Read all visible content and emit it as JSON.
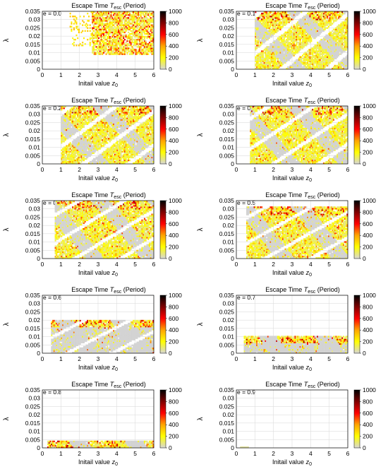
{
  "chart_data": {
    "type": "heatmap",
    "panel_count": 10,
    "title_prefix": "Escape Time ",
    "title_symbol": "T",
    "title_subscript": "esc",
    "title_suffix": " (Period)",
    "xlabel_prefix": "Initail value ",
    "xlabel_symbol": "z",
    "xlabel_subscript": "0",
    "ylabel": "λ",
    "xlim": [
      0,
      6
    ],
    "ylim": [
      0,
      0.035
    ],
    "xticks": [
      "0",
      "1",
      "2",
      "3",
      "4",
      "5",
      "6"
    ],
    "yticks": [
      "0",
      "0.005",
      "0.01",
      "0.015",
      "0.02",
      "0.025",
      "0.03",
      "0.035"
    ],
    "colorbar": {
      "range": [
        0,
        1000
      ],
      "ticks": [
        "0",
        "200",
        "400",
        "600",
        "800",
        "1000"
      ],
      "colors": [
        "#d7d7d7",
        "#ffff00",
        "#ffa500",
        "#ff0000",
        "#800000",
        "#000000"
      ]
    },
    "grid": true,
    "gray_color": "#d3d3d3",
    "panels": [
      {
        "e_label": "e = 0.0",
        "e": 0.0
      },
      {
        "e_label": "e = 0.1",
        "e": 0.1
      },
      {
        "e_label": "e = 0.2",
        "e": 0.2
      },
      {
        "e_label": "e = 0.3",
        "e": 0.3
      },
      {
        "e_label": "e = 0.4",
        "e": 0.4
      },
      {
        "e_label": "e = 0.5",
        "e": 0.5
      },
      {
        "e_label": "e = 0.6",
        "e": 0.6
      },
      {
        "e_label": "e = 0.7",
        "e": 0.7
      },
      {
        "e_label": "e = 0.8",
        "e": 0.8
      },
      {
        "e_label": "e = 0.9",
        "e": 0.9
      }
    ]
  }
}
